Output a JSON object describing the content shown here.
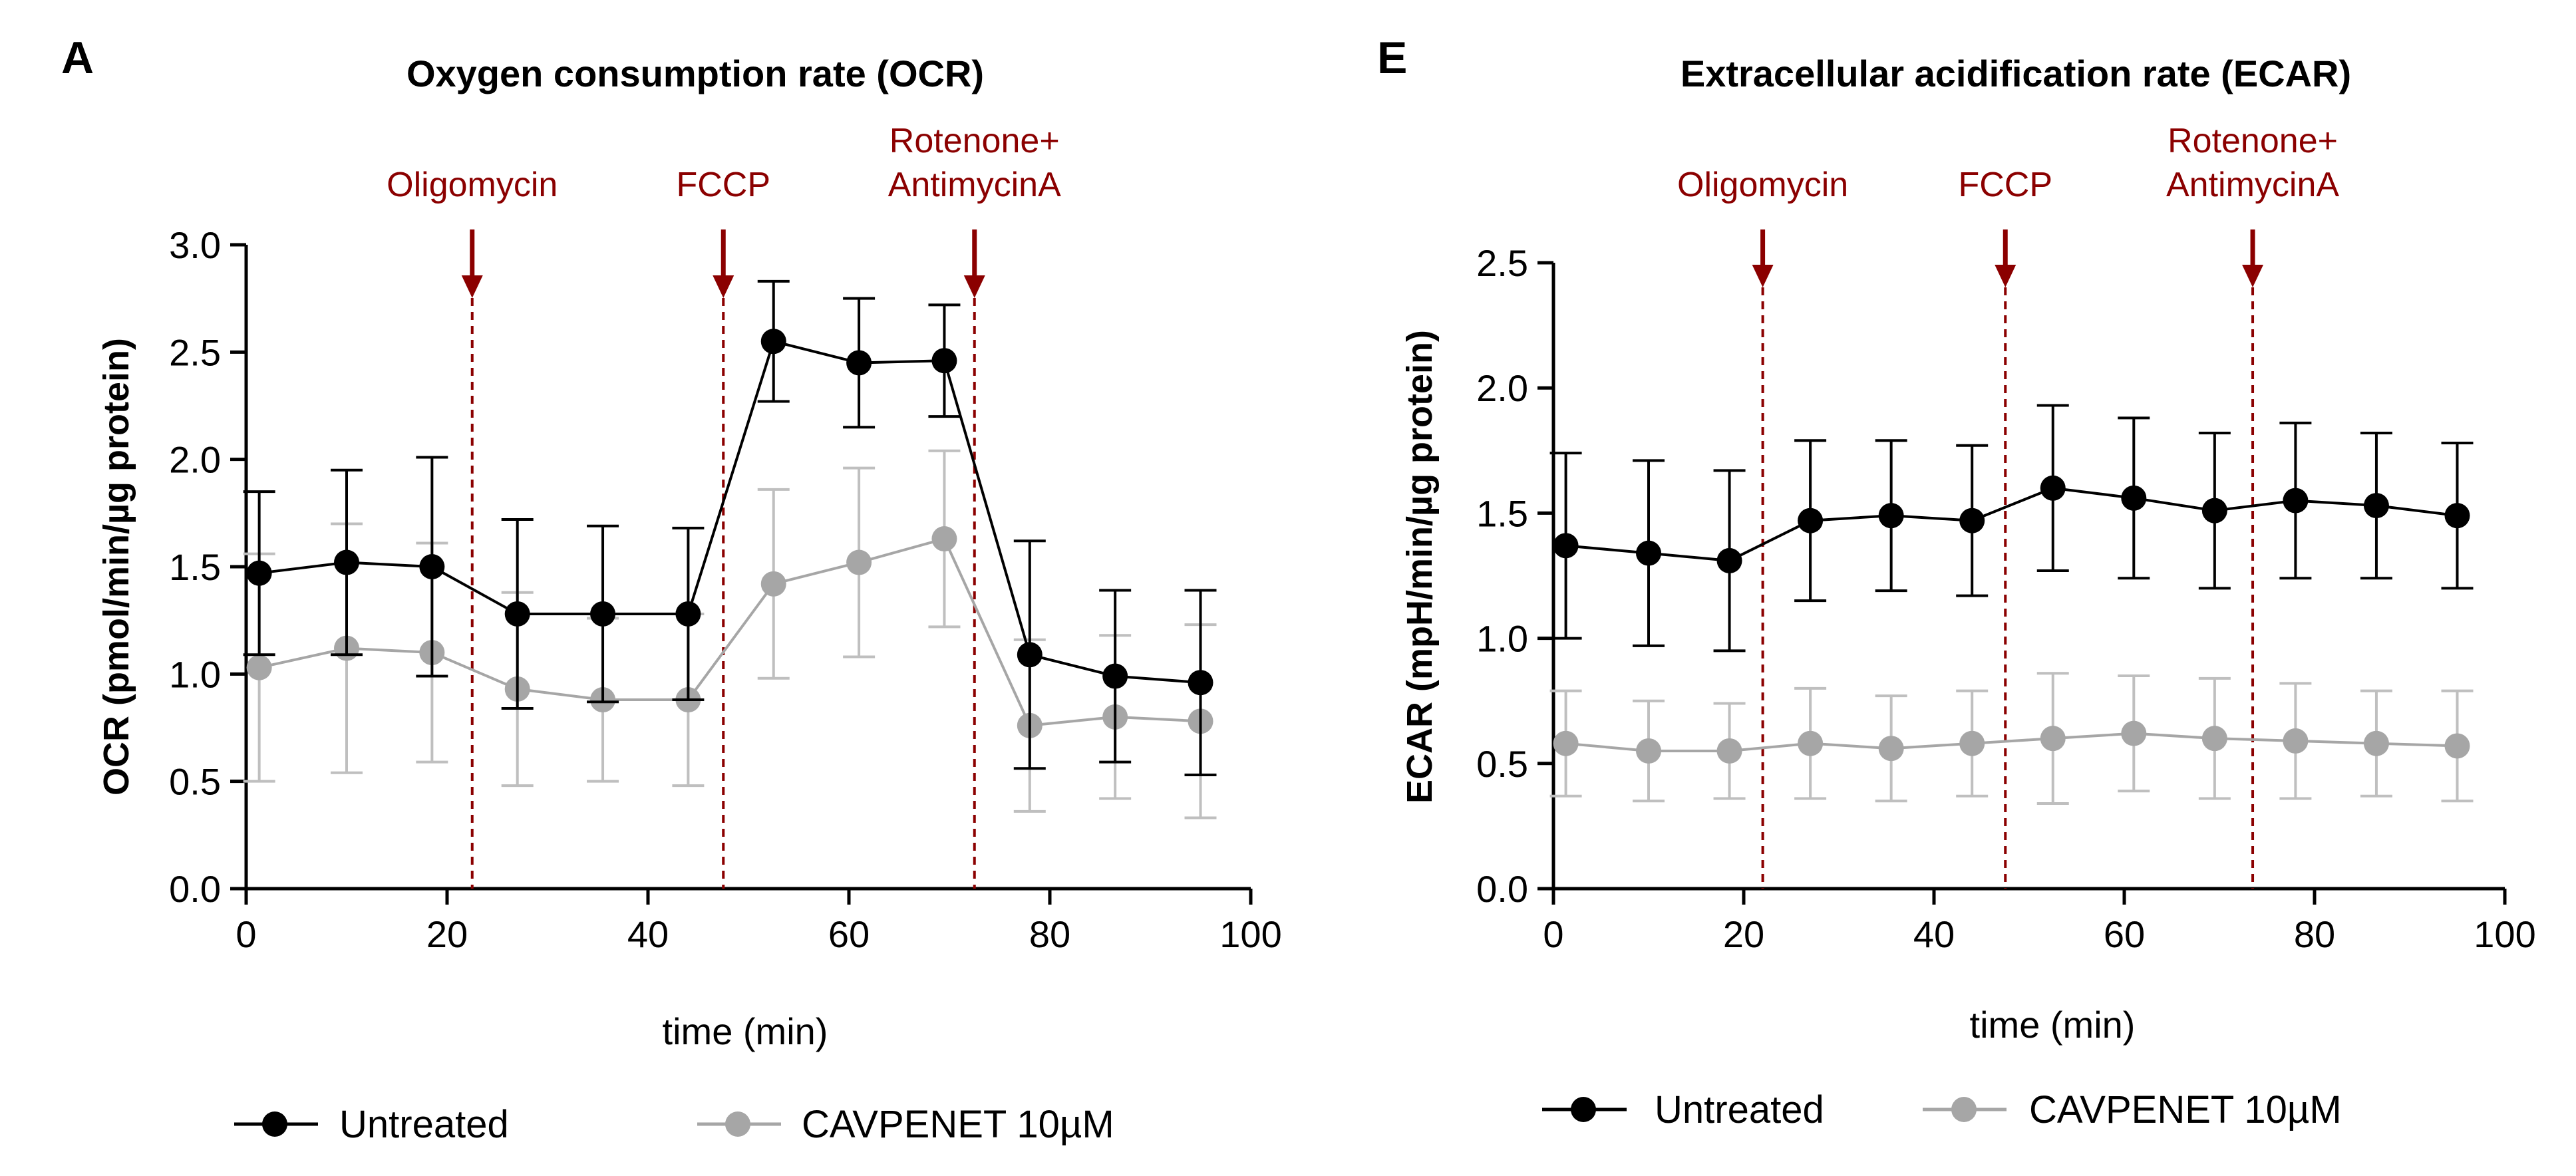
{
  "colors": {
    "untreated": "#000000",
    "treated": "#a6a6a6",
    "treated_err": "#bfbfbf",
    "annotation": "#8b0000",
    "axis": "#000000"
  },
  "chart_data": [
    {
      "id": "ocr",
      "type": "line",
      "panel_label": "A",
      "title": "Oxygen consumption rate (OCR)",
      "xlabel": "time (min)",
      "ylabel": "OCR (pmol/min/µg protein)",
      "xlim": [
        0,
        100
      ],
      "ylim": [
        0,
        3.0
      ],
      "xticks": [
        0,
        20,
        40,
        60,
        80,
        100
      ],
      "xtick_labels": [
        "0",
        "20",
        "40",
        "60",
        "80",
        "100"
      ],
      "yticks": [
        0,
        0.5,
        1.0,
        1.5,
        2.0,
        2.5,
        3.0
      ],
      "ytick_labels": [
        "0.0",
        "0.5",
        "1.0",
        "1.5",
        "2.0",
        "2.5",
        "3.0"
      ],
      "injections": [
        {
          "x": 22.5,
          "lines": [
            "Oligomycin"
          ]
        },
        {
          "x": 47.5,
          "lines": [
            "FCCP"
          ]
        },
        {
          "x": 72.5,
          "lines": [
            "Rotenone+",
            "AntimycinA"
          ]
        }
      ],
      "x": [
        1.3,
        10,
        18.5,
        27,
        35.5,
        44,
        52.5,
        61,
        69.5,
        78,
        86.5,
        95
      ],
      "series": [
        {
          "name": "Untreated",
          "color_key": "untreated",
          "values": [
            1.47,
            1.52,
            1.5,
            1.28,
            1.28,
            1.28,
            2.55,
            2.45,
            2.46,
            1.09,
            0.99,
            0.96
          ],
          "err": [
            0.38,
            0.43,
            0.51,
            0.44,
            0.41,
            0.4,
            0.28,
            0.3,
            0.26,
            0.53,
            0.4,
            0.43
          ]
        },
        {
          "name": "CAVPENET 10µM",
          "color_key": "treated",
          "values": [
            1.03,
            1.12,
            1.1,
            0.93,
            0.88,
            0.88,
            1.42,
            1.52,
            1.63,
            0.76,
            0.8,
            0.78
          ],
          "err": [
            0.53,
            0.58,
            0.51,
            0.45,
            0.38,
            0.4,
            0.44,
            0.44,
            0.41,
            0.4,
            0.38,
            0.45
          ]
        }
      ],
      "legend": [
        "Untreated",
        "CAVPENET 10µM"
      ]
    },
    {
      "id": "ecar",
      "type": "line",
      "panel_label": "E",
      "title": "Extracellular acidification rate (ECAR)",
      "xlabel": "time  (min)",
      "ylabel": "ECAR (mpH/min/µg protein)",
      "xlim": [
        0,
        100
      ],
      "ylim": [
        0,
        2.5
      ],
      "xticks": [
        0,
        20,
        40,
        60,
        80,
        100
      ],
      "xtick_labels": [
        "0",
        "20",
        "40",
        "60",
        "80",
        "100"
      ],
      "yticks": [
        0,
        0.5,
        1.0,
        1.5,
        2.0,
        2.5
      ],
      "ytick_labels": [
        "0.0",
        "0.5",
        "1.0",
        "1.5",
        "2.0",
        "2.5"
      ],
      "injections": [
        {
          "x": 22.0,
          "lines": [
            "Oligomycin"
          ]
        },
        {
          "x": 47.5,
          "lines": [
            "FCCP"
          ]
        },
        {
          "x": 73.5,
          "lines": [
            "Rotenone+",
            "AntimycinA"
          ]
        }
      ],
      "x": [
        1.3,
        10,
        18.5,
        27,
        35.5,
        44,
        52.5,
        61,
        69.5,
        78,
        86.5,
        95
      ],
      "series": [
        {
          "name": "Untreated",
          "color_key": "untreated",
          "values": [
            1.37,
            1.34,
            1.31,
            1.47,
            1.49,
            1.47,
            1.6,
            1.56,
            1.51,
            1.55,
            1.53,
            1.49
          ],
          "err": [
            0.37,
            0.37,
            0.36,
            0.32,
            0.3,
            0.3,
            0.33,
            0.32,
            0.31,
            0.31,
            0.29,
            0.29
          ]
        },
        {
          "name": "CAVPENET 10µM",
          "color_key": "treated",
          "values": [
            0.58,
            0.55,
            0.55,
            0.58,
            0.56,
            0.58,
            0.6,
            0.62,
            0.6,
            0.59,
            0.58,
            0.57
          ],
          "err": [
            0.21,
            0.2,
            0.19,
            0.22,
            0.21,
            0.21,
            0.26,
            0.23,
            0.24,
            0.23,
            0.21,
            0.22
          ]
        }
      ],
      "legend": [
        "Untreated",
        "CAVPENET 10µM"
      ]
    }
  ]
}
